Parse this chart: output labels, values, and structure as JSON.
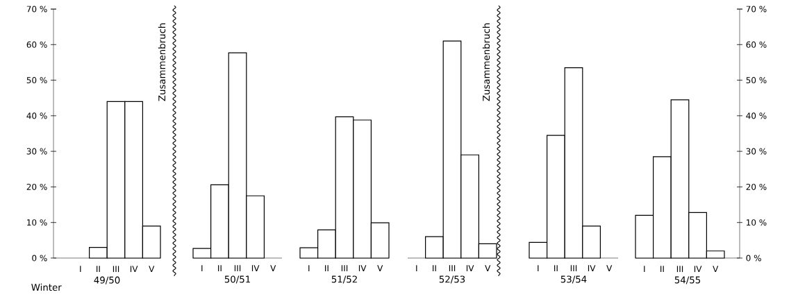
{
  "chart_data": [
    {
      "type": "bar",
      "xlabel": "49/50",
      "categories": [
        "I",
        "II",
        "III",
        "IV",
        "V"
      ],
      "values": [
        0,
        3,
        44,
        44,
        9
      ],
      "color": "#ffffff",
      "ylim": [
        0,
        70
      ],
      "yticks": [
        {
          "value": 0,
          "label": "0 %"
        },
        {
          "value": 10,
          "label": "10 %"
        },
        {
          "value": 20,
          "label": "20 %"
        },
        {
          "value": 30,
          "label": "30 %"
        },
        {
          "value": 40,
          "label": "40 %"
        },
        {
          "value": 50,
          "label": "50 %"
        },
        {
          "value": 60,
          "label": "60 %"
        },
        {
          "value": 70,
          "label": "70 %"
        }
      ],
      "annotations": [
        "Winter",
        "Zusammenbruch"
      ],
      "grid": false
    },
    {
      "type": "bar",
      "xlabel": "50/51",
      "categories": [
        "I",
        "II",
        "III",
        "IV",
        "V"
      ],
      "values": [
        2.7,
        20.6,
        57.7,
        17.5,
        0
      ],
      "color": "#ffffff",
      "ylim": [
        0,
        70
      ],
      "grid": false
    },
    {
      "type": "bar",
      "xlabel": "51/52",
      "categories": [
        "I",
        "II",
        "III",
        "IV",
        "V"
      ],
      "values": [
        2.9,
        7.9,
        39.7,
        38.8,
        9.9
      ],
      "color": "#ffffff",
      "ylim": [
        0,
        70
      ],
      "grid": false
    },
    {
      "type": "bar",
      "xlabel": "52/53",
      "categories": [
        "I",
        "II",
        "III",
        "IV",
        "V"
      ],
      "values": [
        0,
        6,
        61,
        29,
        4
      ],
      "color": "#ffffff",
      "ylim": [
        0,
        70
      ],
      "annotations": [
        "Zusammenbruch"
      ],
      "grid": false
    },
    {
      "type": "bar",
      "xlabel": "53/54",
      "categories": [
        "I",
        "II",
        "III",
        "IV",
        "V"
      ],
      "values": [
        4.4,
        34.5,
        53.5,
        9,
        0
      ],
      "color": "#ffffff",
      "ylim": [
        0,
        70
      ],
      "grid": false
    },
    {
      "type": "bar",
      "xlabel": "54/55",
      "categories": [
        "I",
        "II",
        "III",
        "IV",
        "V"
      ],
      "series": [
        {
          "values": [
            12,
            28.5,
            44.5,
            12.8,
            2
          ],
          "color": "#ffffff",
          "axis": "y2"
        }
      ],
      "y2lim": [
        0,
        70
      ],
      "y2ticks": [
        {
          "value": 0,
          "label": "0 %"
        },
        {
          "value": 10,
          "label": "10 %"
        },
        {
          "value": 20,
          "label": "20 %"
        },
        {
          "value": 30,
          "label": "30 %"
        },
        {
          "value": 40,
          "label": "40 %"
        },
        {
          "value": 50,
          "label": "50 %"
        },
        {
          "value": 60,
          "label": "60 %"
        },
        {
          "value": 70,
          "label": "70 %"
        }
      ],
      "grid": false
    }
  ]
}
